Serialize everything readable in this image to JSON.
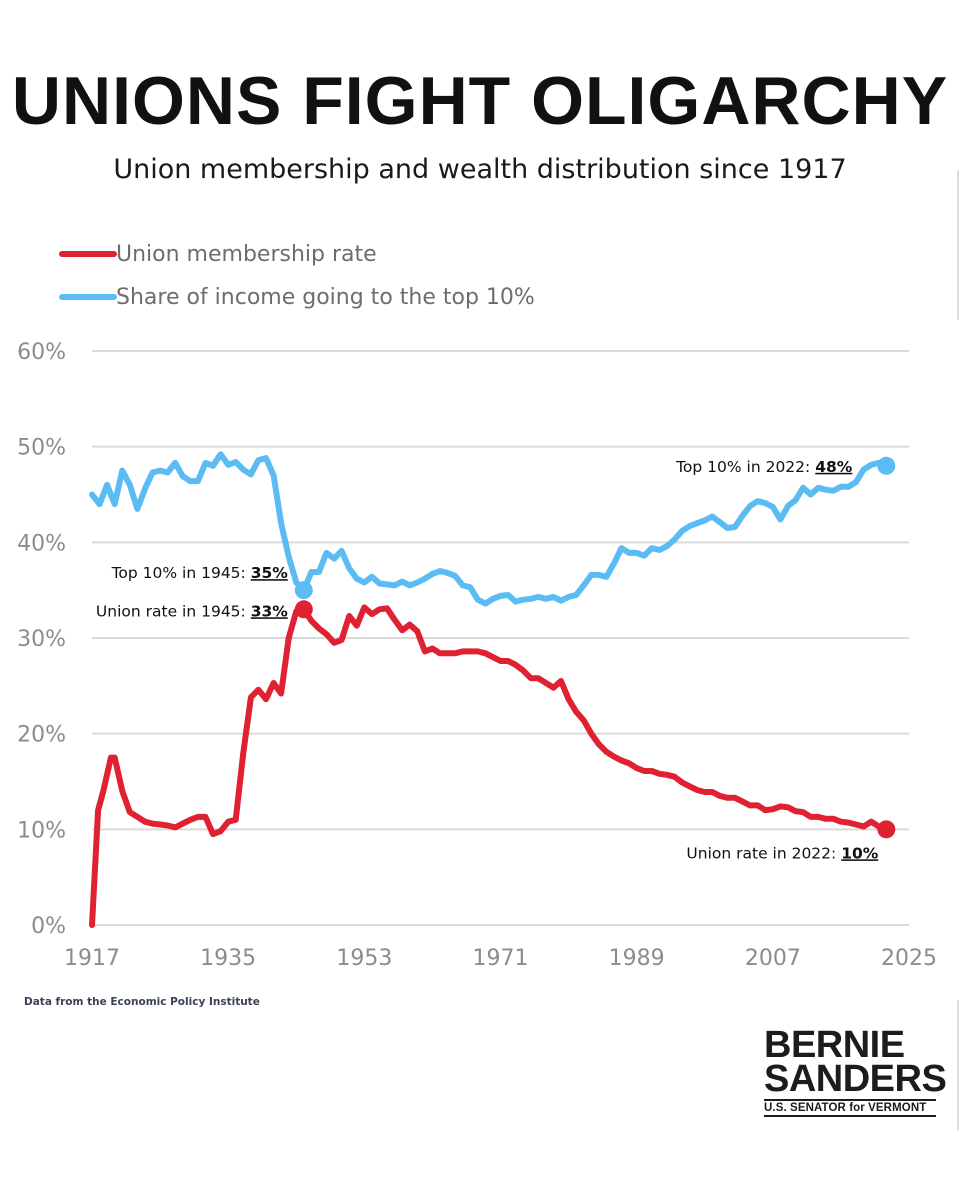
{
  "title": "UNIONS FIGHT OLIGARCHY",
  "subtitle": "Union membership and wealth distribution since 1917",
  "source": "Data from the Economic Policy Institute",
  "logo": {
    "line1": "BERNIE",
    "line2": "SANDERS",
    "line3": "U.S. SENATOR for VERMONT"
  },
  "colors": {
    "union": "#e02131",
    "top10": "#5bbcf4",
    "grid": "#d9d9d9",
    "tick": "#8c8c8c"
  },
  "chart_data": {
    "type": "line",
    "title": "UNIONS FIGHT OLIGARCHY",
    "xlabel": "",
    "ylabel": "",
    "xlim": [
      1917,
      2025
    ],
    "ylim": [
      0,
      60
    ],
    "grid": true,
    "legend_position": "top-left",
    "x_ticks": [
      "1917",
      "1935",
      "1953",
      "1971",
      "1989",
      "2007",
      "2025"
    ],
    "y_ticks": [
      "0%",
      "10%",
      "20%",
      "30%",
      "40%",
      "50%",
      "60%"
    ],
    "series": [
      {
        "name": "Union membership rate",
        "color": "#e02131",
        "x": [
          1917,
          1917.8,
          1918.5,
          1919.5,
          1920,
          1921,
          1922,
          1923,
          1924,
          1925,
          1926,
          1927,
          1928,
          1929,
          1930,
          1931,
          1932,
          1933,
          1934,
          1935,
          1936,
          1937,
          1938,
          1939,
          1940,
          1941,
          1942,
          1943,
          1944,
          1945,
          1946,
          1947,
          1948,
          1949,
          1950,
          1951,
          1952,
          1953,
          1954,
          1955,
          1956,
          1957,
          1958,
          1959,
          1960,
          1961,
          1962,
          1963,
          1964,
          1965,
          1966,
          1967,
          1968,
          1969,
          1970,
          1971,
          1972,
          1973,
          1974,
          1975,
          1976,
          1977,
          1978,
          1979,
          1980,
          1981,
          1982,
          1983,
          1984,
          1985,
          1986,
          1987,
          1988,
          1989,
          1990,
          1991,
          1992,
          1993,
          1994,
          1995,
          1996,
          1997,
          1998,
          1999,
          2000,
          2001,
          2002,
          2003,
          2004,
          2005,
          2006,
          2007,
          2008,
          2009,
          2010,
          2011,
          2012,
          2013,
          2014,
          2015,
          2016,
          2017,
          2018,
          2019,
          2020,
          2021,
          2022
        ],
        "values": [
          0,
          12,
          14,
          17.5,
          17.5,
          14,
          11.8,
          11.3,
          10.8,
          10.6,
          10.5,
          10.4,
          10.2,
          10.6,
          11,
          11.3,
          11.3,
          9.5,
          9.8,
          10.8,
          11,
          18,
          23.8,
          24.6,
          23.6,
          25.3,
          24.2,
          30,
          32.8,
          33,
          31.8,
          31,
          30.4,
          29.5,
          29.8,
          32.3,
          31.3,
          33.2,
          32.5,
          33,
          33.1,
          31.9,
          30.8,
          31.4,
          30.7,
          28.6,
          28.9,
          28.4,
          28.4,
          28.4,
          28.6,
          28.6,
          28.6,
          28.4,
          28,
          27.6,
          27.6,
          27.2,
          26.6,
          25.8,
          25.8,
          25.3,
          24.8,
          25.5,
          23.6,
          22.3,
          21.4,
          20,
          18.9,
          18.1,
          17.6,
          17.2,
          16.9,
          16.4,
          16.1,
          16.1,
          15.8,
          15.7,
          15.5,
          14.9,
          14.5,
          14.1,
          13.9,
          13.9,
          13.5,
          13.3,
          13.3,
          12.9,
          12.5,
          12.5,
          12.0,
          12.1,
          12.4,
          12.3,
          11.9,
          11.8,
          11.3,
          11.3,
          11.1,
          11.1,
          10.8,
          10.7,
          10.5,
          10.3,
          10.8,
          10.3,
          10
        ]
      },
      {
        "name": "Share of income going to the top 10%",
        "color": "#5bbcf4",
        "x": [
          1917,
          1918,
          1919,
          1920,
          1921,
          1922,
          1923,
          1924,
          1925,
          1926,
          1927,
          1928,
          1929,
          1930,
          1931,
          1932,
          1933,
          1934,
          1935,
          1936,
          1937,
          1938,
          1939,
          1940,
          1941,
          1942,
          1943,
          1944,
          1945,
          1946,
          1947,
          1948,
          1949,
          1950,
          1951,
          1952,
          1953,
          1954,
          1955,
          1956,
          1957,
          1958,
          1959,
          1960,
          1961,
          1962,
          1963,
          1964,
          1965,
          1966,
          1967,
          1968,
          1969,
          1970,
          1971,
          1972,
          1973,
          1974,
          1975,
          1976,
          1977,
          1978,
          1979,
          1980,
          1981,
          1982,
          1983,
          1984,
          1985,
          1986,
          1987,
          1988,
          1989,
          1990,
          1991,
          1992,
          1993,
          1994,
          1995,
          1996,
          1997,
          1998,
          1999,
          2000,
          2001,
          2002,
          2003,
          2004,
          2005,
          2006,
          2007,
          2008,
          2009,
          2010,
          2011,
          2012,
          2013,
          2014,
          2015,
          2016,
          2017,
          2018,
          2019,
          2020,
          2021,
          2022
        ],
        "values": [
          45,
          44,
          46,
          44,
          47.5,
          46,
          43.5,
          45.6,
          47.3,
          47.5,
          47.3,
          48.3,
          46.9,
          46.4,
          46.4,
          48.3,
          48,
          49.2,
          48.1,
          48.4,
          47.6,
          47.1,
          48.6,
          48.8,
          47,
          42,
          38.5,
          35.8,
          35,
          36.9,
          36.9,
          38.9,
          38.3,
          39.1,
          37.3,
          36.2,
          35.8,
          36.4,
          35.7,
          35.6,
          35.5,
          35.9,
          35.5,
          35.8,
          36.2,
          36.7,
          37,
          36.8,
          36.5,
          35.5,
          35.3,
          34,
          33.6,
          34.1,
          34.4,
          34.5,
          33.8,
          34,
          34.1,
          34.3,
          34.1,
          34.3,
          33.9,
          34.3,
          34.5,
          35.5,
          36.6,
          36.6,
          36.4,
          37.8,
          39.4,
          38.9,
          38.9,
          38.6,
          39.4,
          39.2,
          39.6,
          40.3,
          41.2,
          41.7,
          42,
          42.3,
          42.7,
          42.1,
          41.5,
          41.6,
          42.8,
          43.8,
          44.3,
          44.1,
          43.7,
          42.4,
          43.8,
          44.4,
          45.7,
          45,
          45.7,
          45.5,
          45.4,
          45.8,
          45.8,
          46.3,
          47.6,
          48.1,
          48.3,
          48.3
        ]
      }
    ],
    "legend": [
      "Union membership rate",
      "Share of income going to the top 10%"
    ],
    "annotations": [
      {
        "series": 1,
        "x": 1945,
        "y": 35,
        "prefix": "Top 10% in 1945: ",
        "value": "35%"
      },
      {
        "series": 0,
        "x": 1945,
        "y": 33,
        "prefix": "Union rate in 1945: ",
        "value": "33%"
      },
      {
        "series": 1,
        "x": 2022,
        "y": 48,
        "prefix": "Top 10% in 2022: ",
        "value": "48%"
      },
      {
        "series": 0,
        "x": 2022,
        "y": 10,
        "prefix": "Union rate in 2022: ",
        "value": "10%"
      }
    ]
  }
}
